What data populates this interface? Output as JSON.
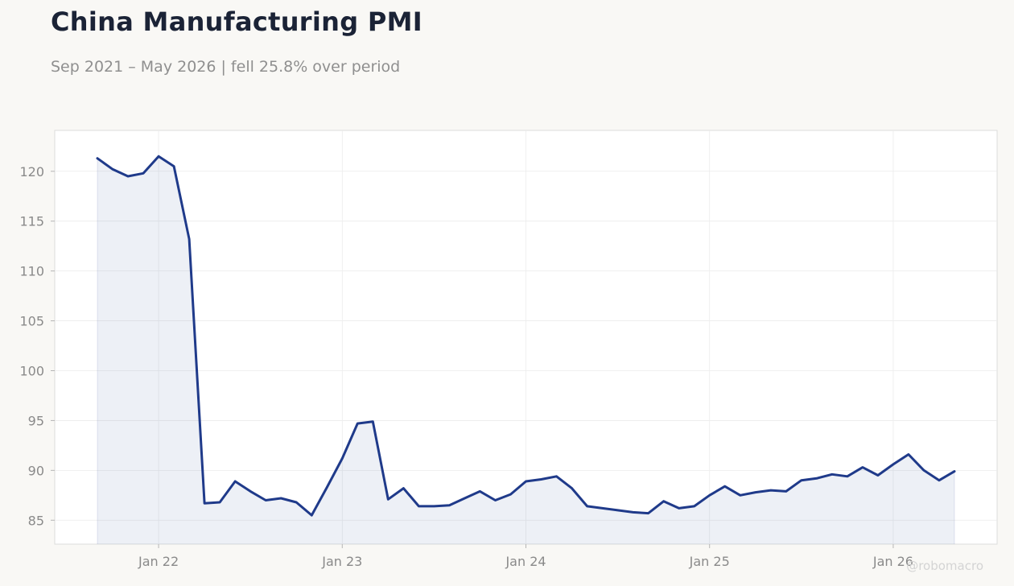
{
  "header": {
    "title": "China Manufacturing PMI",
    "subtitle": "Sep 2021 – May 2026 | fell 25.8% over period"
  },
  "watermark": "@robomacro",
  "colors": {
    "line": "#1f3a8a",
    "fill": "#1f3a8a",
    "background": "#f9f8f5",
    "plot_bg": "#ffffff"
  },
  "chart_data": {
    "type": "area",
    "title": "China Manufacturing PMI",
    "subtitle": "Sep 2021 – May 2026 | fell 25.8% over period",
    "xlabel": "",
    "ylabel": "",
    "x_start": "2021-09",
    "x_end": "2026-05",
    "x_ticks": [
      {
        "date": "2022-01",
        "label": "Jan 22"
      },
      {
        "date": "2023-01",
        "label": "Jan 23"
      },
      {
        "date": "2024-01",
        "label": "Jan 24"
      },
      {
        "date": "2025-01",
        "label": "Jan 25"
      },
      {
        "date": "2026-01",
        "label": "Jan 26"
      }
    ],
    "yticks": [
      85,
      90,
      95,
      100,
      105,
      110,
      115,
      120
    ],
    "ylim": [
      82.6,
      124.1
    ],
    "grid": true,
    "legend": "none",
    "series": [
      {
        "points": [
          [
            "2021-09",
            121.3
          ],
          [
            "2021-10",
            120.2
          ],
          [
            "2021-11",
            119.5
          ],
          [
            "2021-12",
            119.8
          ],
          [
            "2022-01",
            121.5
          ],
          [
            "2022-02",
            120.5
          ],
          [
            "2022-03",
            113.2
          ],
          [
            "2022-04",
            86.7
          ],
          [
            "2022-05",
            86.8
          ],
          [
            "2022-06",
            88.9
          ],
          [
            "2022-07",
            87.9
          ],
          [
            "2022-08",
            87.0
          ],
          [
            "2022-09",
            87.2
          ],
          [
            "2022-10",
            86.8
          ],
          [
            "2022-11",
            85.5
          ],
          [
            "2022-12",
            88.3
          ],
          [
            "2023-01",
            91.2
          ],
          [
            "2023-02",
            94.7
          ],
          [
            "2023-03",
            94.9
          ],
          [
            "2023-04",
            87.1
          ],
          [
            "2023-05",
            88.2
          ],
          [
            "2023-06",
            86.4
          ],
          [
            "2023-07",
            86.4
          ],
          [
            "2023-08",
            86.5
          ],
          [
            "2023-09",
            87.2
          ],
          [
            "2023-10",
            87.9
          ],
          [
            "2023-11",
            87.0
          ],
          [
            "2023-12",
            87.6
          ],
          [
            "2024-01",
            88.9
          ],
          [
            "2024-02",
            89.1
          ],
          [
            "2024-03",
            89.4
          ],
          [
            "2024-04",
            88.2
          ],
          [
            "2024-05",
            86.4
          ],
          [
            "2024-06",
            86.2
          ],
          [
            "2024-07",
            86.0
          ],
          [
            "2024-08",
            85.8
          ],
          [
            "2024-09",
            85.7
          ],
          [
            "2024-10",
            86.9
          ],
          [
            "2024-11",
            86.2
          ],
          [
            "2024-12",
            86.4
          ],
          [
            "2025-01",
            87.5
          ],
          [
            "2025-02",
            88.4
          ],
          [
            "2025-03",
            87.5
          ],
          [
            "2025-04",
            87.8
          ],
          [
            "2025-05",
            88.0
          ],
          [
            "2025-06",
            87.9
          ],
          [
            "2025-07",
            89.0
          ],
          [
            "2025-08",
            89.2
          ],
          [
            "2025-09",
            89.6
          ],
          [
            "2025-10",
            89.4
          ],
          [
            "2025-11",
            90.3
          ],
          [
            "2025-12",
            89.5
          ],
          [
            "2026-01",
            90.6
          ],
          [
            "2026-02",
            91.6
          ],
          [
            "2026-03",
            90.0
          ],
          [
            "2026-04",
            89.0
          ],
          [
            "2026-05",
            89.9
          ]
        ]
      }
    ]
  }
}
